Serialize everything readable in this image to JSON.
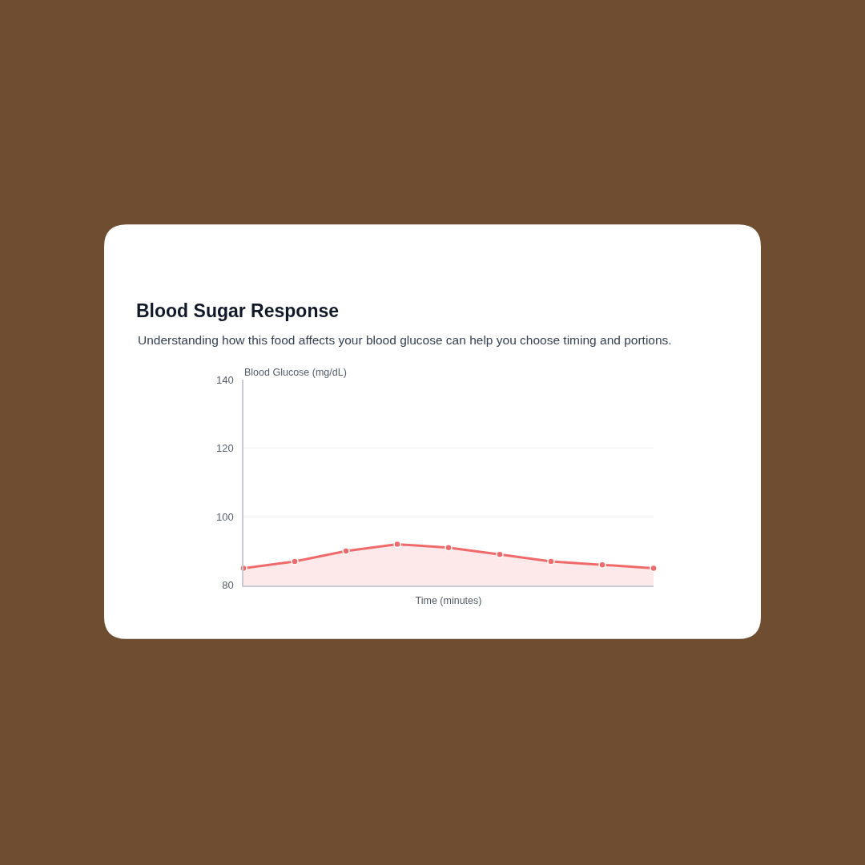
{
  "chart_data": {
    "type": "area",
    "title": "Blood Sugar Response",
    "subtitle": "Understanding how this food affects your blood glucose can help you choose timing and portions.",
    "xlabel": "Time (minutes)",
    "ylabel": "Blood Glucose (mg/dL)",
    "categories": [
      null,
      null,
      null,
      null,
      null,
      null,
      null,
      null,
      null
    ],
    "series": [
      {
        "color": "#ef6b6b",
        "values": [
          85,
          87,
          90,
          92,
          91,
          89,
          87,
          86,
          85
        ]
      }
    ],
    "ylim": [
      80,
      140
    ],
    "yticks": [
      80,
      100,
      120,
      140
    ],
    "grid": "y",
    "marker": "circle",
    "line_style": "solid",
    "tick_labels": "y"
  }
}
